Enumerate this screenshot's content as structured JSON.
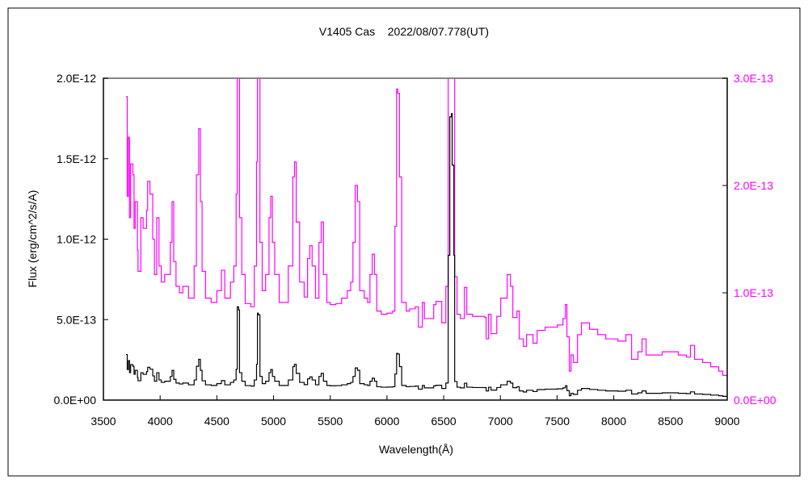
{
  "chart_data": {
    "type": "line",
    "title": "V1405 Cas    2022/08/07.778(UT)",
    "xlabel": "Wavelength(Å)",
    "ylabel": "Flux (erg/cm^2/s/A)",
    "xlim": [
      3500,
      9000
    ],
    "ylim_left": [
      0,
      2e-12
    ],
    "ylim_right": [
      0,
      3e-13
    ],
    "x_ticks": [
      "3500",
      "4000",
      "4500",
      "5000",
      "5500",
      "6000",
      "6500",
      "7000",
      "7500",
      "8000",
      "8500",
      "9000"
    ],
    "y_ticks_left": [
      "0.0E+00",
      "5.0E-13",
      "1.0E-12",
      "1.5E-12",
      "2.0E-12"
    ],
    "y_ticks_right": [
      "0.0E+00",
      "1.0E-13",
      "2.0E-13",
      "3.0E-13"
    ],
    "grid": false,
    "colors": {
      "left_series": "#000000",
      "right_series": "#ff00ff",
      "right_axis_labels": "#ff00ff"
    },
    "series": [
      {
        "axis": "left",
        "color": "#000000",
        "points_ref": "spectrum"
      },
      {
        "axis": "right",
        "color": "#ff00ff",
        "points_ref": "spectrum"
      }
    ],
    "spectrum": [
      [
        3700,
        2.83e-13
      ],
      [
        3710,
        1.9e-13
      ],
      [
        3720,
        2.45e-13
      ],
      [
        3730,
        1.7e-13
      ],
      [
        3740,
        2.2e-13
      ],
      [
        3760,
        2.1e-13
      ],
      [
        3770,
        1.6e-13
      ],
      [
        3780,
        1.85e-13
      ],
      [
        3800,
        1.4e-13
      ],
      [
        3805,
        1.2e-13
      ],
      [
        3830,
        1.7e-13
      ],
      [
        3850,
        1.6e-13
      ],
      [
        3880,
        1.77e-13
      ],
      [
        3890,
        2.04e-13
      ],
      [
        3910,
        1.92e-13
      ],
      [
        3935,
        1.5e-13
      ],
      [
        3950,
        1.17e-13
      ],
      [
        3970,
        1.7e-13
      ],
      [
        3990,
        1.25e-13
      ],
      [
        4010,
        1.1e-13
      ],
      [
        4040,
        1.17e-13
      ],
      [
        4070,
        1.17e-13
      ],
      [
        4090,
        1.47e-13
      ],
      [
        4105,
        1.85e-13
      ],
      [
        4120,
        1.29e-13
      ],
      [
        4140,
        1.06e-13
      ],
      [
        4170,
        1e-13
      ],
      [
        4200,
        1.06e-13
      ],
      [
        4250,
        9.5e-14
      ],
      [
        4300,
        1.25e-13
      ],
      [
        4320,
        2.1e-13
      ],
      [
        4340,
        2.53e-13
      ],
      [
        4355,
        1.85e-13
      ],
      [
        4370,
        1.2e-13
      ],
      [
        4400,
        9.5e-14
      ],
      [
        4450,
        9.1e-14
      ],
      [
        4500,
        1.02e-13
      ],
      [
        4540,
        1.21e-13
      ],
      [
        4570,
        9.5e-14
      ],
      [
        4620,
        1.1e-13
      ],
      [
        4650,
        1.25e-13
      ],
      [
        4670,
        1.92e-13
      ],
      [
        4680,
        5.8e-13
      ],
      [
        4692,
        5.6e-13
      ],
      [
        4700,
        1.7e-13
      ],
      [
        4720,
        1.17e-13
      ],
      [
        4750,
        9e-14
      ],
      [
        4800,
        8.7e-14
      ],
      [
        4830,
        1.25e-13
      ],
      [
        4850,
        2.22e-13
      ],
      [
        4858,
        5.4e-13
      ],
      [
        4866,
        5.3e-13
      ],
      [
        4880,
        1.47e-13
      ],
      [
        4900,
        1.02e-13
      ],
      [
        4930,
        1.17e-13
      ],
      [
        4960,
        1.7e-13
      ],
      [
        4975,
        1.9e-13
      ],
      [
        4990,
        1.47e-13
      ],
      [
        5010,
        1.17e-13
      ],
      [
        5050,
        9.1e-14
      ],
      [
        5100,
        9.1e-14
      ],
      [
        5130,
        1.25e-13
      ],
      [
        5170,
        2.08e-13
      ],
      [
        5185,
        2.22e-13
      ],
      [
        5200,
        1.66e-13
      ],
      [
        5230,
        1.1e-13
      ],
      [
        5270,
        9.6e-14
      ],
      [
        5300,
        1.32e-13
      ],
      [
        5320,
        1.44e-13
      ],
      [
        5340,
        1.25e-13
      ],
      [
        5370,
        9.5e-14
      ],
      [
        5400,
        1.47e-13
      ],
      [
        5420,
        1.66e-13
      ],
      [
        5440,
        1.17e-13
      ],
      [
        5470,
        9.1e-14
      ],
      [
        5500,
        8.9e-14
      ],
      [
        5550,
        9e-14
      ],
      [
        5600,
        9.5e-14
      ],
      [
        5650,
        1.02e-13
      ],
      [
        5680,
        1.1e-13
      ],
      [
        5700,
        1.47e-13
      ],
      [
        5720,
        2e-13
      ],
      [
        5740,
        1.85e-13
      ],
      [
        5760,
        1.02e-13
      ],
      [
        5800,
        9.5e-14
      ],
      [
        5830,
        9.1e-14
      ],
      [
        5850,
        1.17e-13
      ],
      [
        5870,
        1.36e-13
      ],
      [
        5890,
        1.17e-13
      ],
      [
        5910,
        8.3e-14
      ],
      [
        5950,
        8e-14
      ],
      [
        6000,
        8.1e-14
      ],
      [
        6050,
        8.3e-14
      ],
      [
        6070,
        1.62e-13
      ],
      [
        6085,
        2.9e-13
      ],
      [
        6095,
        2.86e-13
      ],
      [
        6110,
        2.08e-13
      ],
      [
        6130,
        9.1e-14
      ],
      [
        6170,
        8.3e-14
      ],
      [
        6200,
        8.5e-14
      ],
      [
        6250,
        8.7e-14
      ],
      [
        6277,
        6.8e-14
      ],
      [
        6312,
        9.1e-14
      ],
      [
        6330,
        7.6e-14
      ],
      [
        6412,
        8.9e-14
      ],
      [
        6433,
        9.2e-14
      ],
      [
        6483,
        7.2e-14
      ],
      [
        6519,
        1.06e-13
      ],
      [
        6540,
        9e-13
      ],
      [
        6554,
        1.76e-12
      ],
      [
        6568,
        1.78e-12
      ],
      [
        6575,
        1.46e-12
      ],
      [
        6590,
        9e-13
      ],
      [
        6597,
        1.15e-13
      ],
      [
        6618,
        8e-14
      ],
      [
        6647,
        7.6e-14
      ],
      [
        6683,
        1.05e-13
      ],
      [
        6697,
        1.05e-13
      ],
      [
        6704,
        8e-14
      ],
      [
        6754,
        7.8e-14
      ],
      [
        6861,
        7.7e-14
      ],
      [
        6875,
        5.7e-14
      ],
      [
        6896,
        8e-14
      ],
      [
        6918,
        6.2e-14
      ],
      [
        6968,
        7.8e-14
      ],
      [
        7003,
        9.5e-14
      ],
      [
        7060,
        1.17e-13
      ],
      [
        7089,
        1.06e-13
      ],
      [
        7110,
        7.7e-14
      ],
      [
        7146,
        8.3e-14
      ],
      [
        7167,
        5.7e-14
      ],
      [
        7203,
        5e-14
      ],
      [
        7231,
        6.1e-14
      ],
      [
        7288,
        5.3e-14
      ],
      [
        7324,
        6.5e-14
      ],
      [
        7395,
        6.8e-14
      ],
      [
        7502,
        7e-14
      ],
      [
        7552,
        7.6e-14
      ],
      [
        7573,
        8.9e-14
      ],
      [
        7587,
        5.9e-14
      ],
      [
        7608,
        2.7e-14
      ],
      [
        7623,
        4.2e-14
      ],
      [
        7644,
        3.5e-14
      ],
      [
        7680,
        6.1e-14
      ],
      [
        7715,
        7.2e-14
      ],
      [
        7786,
        6.6e-14
      ],
      [
        7858,
        6.1e-14
      ],
      [
        7929,
        5.7e-14
      ],
      [
        8036,
        5.5e-14
      ],
      [
        8107,
        6.1e-14
      ],
      [
        8157,
        3.8e-14
      ],
      [
        8213,
        4.5e-14
      ],
      [
        8249,
        5.7e-14
      ],
      [
        8285,
        4.2e-14
      ],
      [
        8427,
        4.5e-14
      ],
      [
        8569,
        4.2e-14
      ],
      [
        8640,
        4e-14
      ],
      [
        8676,
        5.1e-14
      ],
      [
        8712,
        3.8e-14
      ],
      [
        8783,
        3.5e-14
      ],
      [
        8854,
        3.1e-14
      ],
      [
        8925,
        2.7e-14
      ],
      [
        8961,
        2.3e-14
      ],
      [
        9000,
        2e-14
      ]
    ]
  }
}
